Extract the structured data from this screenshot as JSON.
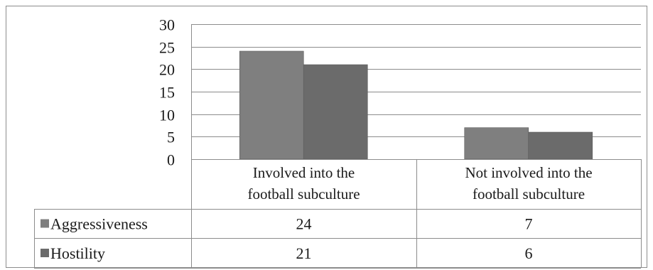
{
  "chart_data": {
    "type": "bar",
    "title": "",
    "xlabel": "",
    "ylabel": "",
    "ylim": [
      0,
      30
    ],
    "yticks": [
      0,
      5,
      10,
      15,
      20,
      25,
      30
    ],
    "grid": true,
    "legend": "data-table",
    "categories": [
      [
        "Involved into the",
        "football subculture"
      ],
      [
        "Not involved into the",
        "football subculture"
      ]
    ],
    "series": [
      {
        "name": "Aggressiveness",
        "values": [
          24,
          7
        ],
        "color": "#7f7f7f"
      },
      {
        "name": "Hostility",
        "values": [
          21,
          6
        ],
        "color": "#6b6b6b"
      }
    ]
  }
}
